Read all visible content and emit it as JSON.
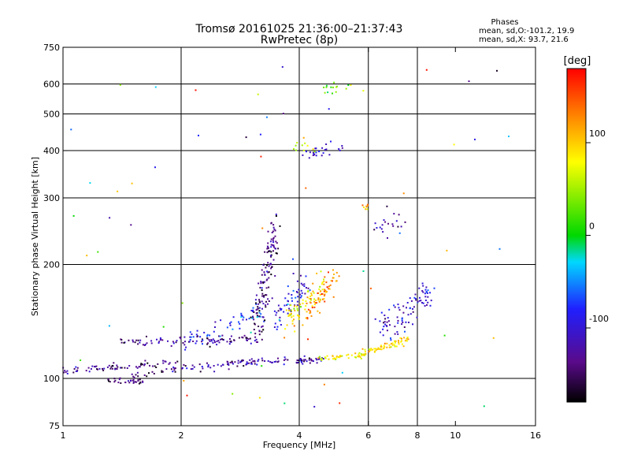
{
  "chart_data": {
    "type": "scatter",
    "title": "Tromsø 20161025 21:36:00–21:37:43",
    "subtitle": "RwPretec (8p)",
    "xlabel": "Frequency [MHz]",
    "ylabel": "Stationary phase Virtual Height [km]",
    "x_scale": "log",
    "y_scale": "log",
    "xlim": [
      1,
      16
    ],
    "ylim": [
      75,
      750
    ],
    "x_ticks": [
      1,
      2,
      4,
      6,
      8,
      10,
      16
    ],
    "x_tick_labels": [
      "1",
      "2",
      "4",
      "6",
      "8",
      "10",
      "16"
    ],
    "y_ticks": [
      75,
      100,
      200,
      300,
      400,
      500,
      600,
      750
    ],
    "y_tick_labels": [
      "75",
      "100",
      "200",
      "300",
      "400",
      "500",
      "600",
      "750"
    ],
    "grid_x": [
      2,
      4,
      6,
      8
    ],
    "grid_y": [
      100,
      200,
      300,
      400,
      500,
      600
    ],
    "colorbar": {
      "label": "[deg]",
      "range": [
        -180,
        180
      ],
      "ticks": [
        100,
        0,
        -100
      ],
      "tick_labels": [
        "100",
        "0",
        "-100"
      ]
    },
    "phases_info": {
      "heading": "Phases",
      "line1": "mean, sd,O:-101.2, 19.9",
      "line2": "mean, sd,X: 93.7, 21.6"
    },
    "series": [
      {
        "segments": [
          {
            "f0": 1.0,
            "f1": 1.95,
            "h0": 104,
            "h1": 110,
            "phase": -130,
            "n": 70,
            "s": 0.012
          },
          {
            "f0": 1.3,
            "f1": 1.6,
            "h0": 99,
            "h1": 98,
            "phase": -145,
            "n": 30,
            "s": 0.01
          },
          {
            "f0": 1.5,
            "f1": 1.95,
            "h0": 100,
            "h1": 106,
            "phase": -140,
            "n": 22,
            "s": 0.012
          },
          {
            "f0": 1.4,
            "f1": 3.2,
            "h0": 125,
            "h1": 127,
            "phase": -130,
            "n": 95,
            "s": 0.012
          },
          {
            "f0": 1.9,
            "f1": 3.0,
            "h0": 106,
            "h1": 110,
            "phase": -125,
            "n": 35,
            "s": 0.012
          },
          {
            "f0": 2.6,
            "f1": 4.6,
            "h0": 110,
            "h1": 112,
            "phase": -120,
            "n": 80,
            "s": 0.01
          },
          {
            "f0": 4.4,
            "f1": 5.9,
            "h0": 113,
            "h1": 115,
            "phase": 80,
            "n": 45,
            "s": 0.01
          },
          {
            "f0": 5.6,
            "f1": 7.6,
            "h0": 115,
            "h1": 127,
            "phase": 90,
            "n": 65,
            "s": 0.012
          },
          {
            "f0": 2.0,
            "f1": 3.3,
            "h0": 125,
            "h1": 150,
            "phase": -80,
            "n": 55,
            "s": 0.03
          },
          {
            "f0": 3.1,
            "f1": 3.5,
            "h0": 135,
            "h1": 250,
            "phase": -140,
            "n": 140,
            "s": 0.06
          },
          {
            "f0": 3.5,
            "f1": 4.2,
            "h0": 145,
            "h1": 180,
            "phase": -100,
            "n": 60,
            "s": 0.05
          },
          {
            "f0": 3.7,
            "f1": 4.6,
            "h0": 140,
            "h1": 175,
            "phase": 90,
            "n": 70,
            "s": 0.04
          },
          {
            "f0": 4.2,
            "f1": 5.0,
            "h0": 145,
            "h1": 185,
            "phase": 130,
            "n": 55,
            "s": 0.04
          },
          {
            "f0": 6.4,
            "f1": 8.6,
            "h0": 135,
            "h1": 165,
            "phase": -110,
            "n": 90,
            "s": 0.05
          },
          {
            "f0": 4.0,
            "f1": 5.3,
            "h0": 390,
            "h1": 410,
            "phase": -110,
            "n": 25,
            "s": 0.02
          },
          {
            "f0": 4.6,
            "f1": 5.5,
            "h0": 570,
            "h1": 600,
            "phase": 40,
            "n": 15,
            "s": 0.02
          },
          {
            "f0": 3.9,
            "f1": 4.4,
            "h0": 408,
            "h1": 400,
            "phase": 60,
            "n": 10,
            "s": 0.02
          },
          {
            "f0": 5.8,
            "f1": 6.1,
            "h0": 285,
            "h1": 285,
            "phase": 110,
            "n": 8,
            "s": 0.01
          },
          {
            "f0": 6.2,
            "f1": 7.4,
            "h0": 250,
            "h1": 260,
            "phase": -120,
            "n": 20,
            "s": 0.04
          },
          {
            "f0": 1.0,
            "f1": 14.0,
            "h0": 80,
            "h1": 700,
            "phase": 0,
            "n": 60,
            "s": 0.5,
            "scatter": true
          }
        ]
      }
    ]
  }
}
